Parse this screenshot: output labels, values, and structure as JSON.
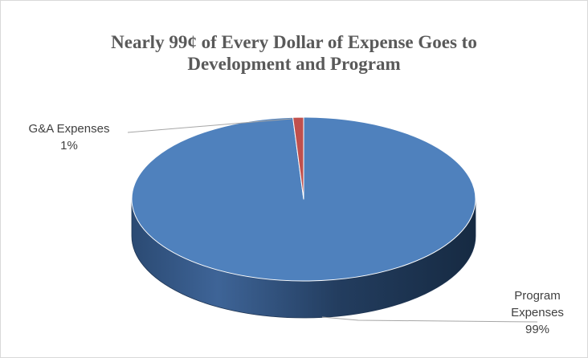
{
  "chart_data": {
    "type": "pie",
    "title_lines": [
      "Nearly 99¢ of Every Dollar of Expense Goes to",
      "Development and Program"
    ],
    "slices": [
      {
        "label": "Program Expenses",
        "label_lines": [
          "Program",
          "Expenses"
        ],
        "value": 99,
        "value_label": "99%",
        "color": "#4f81bd"
      },
      {
        "label": "G&A Expenses",
        "label_lines": [
          "G&A Expenses"
        ],
        "value": 1,
        "value_label": "1%",
        "color": "#c0504d"
      }
    ],
    "legend": "none",
    "style": "3d"
  }
}
